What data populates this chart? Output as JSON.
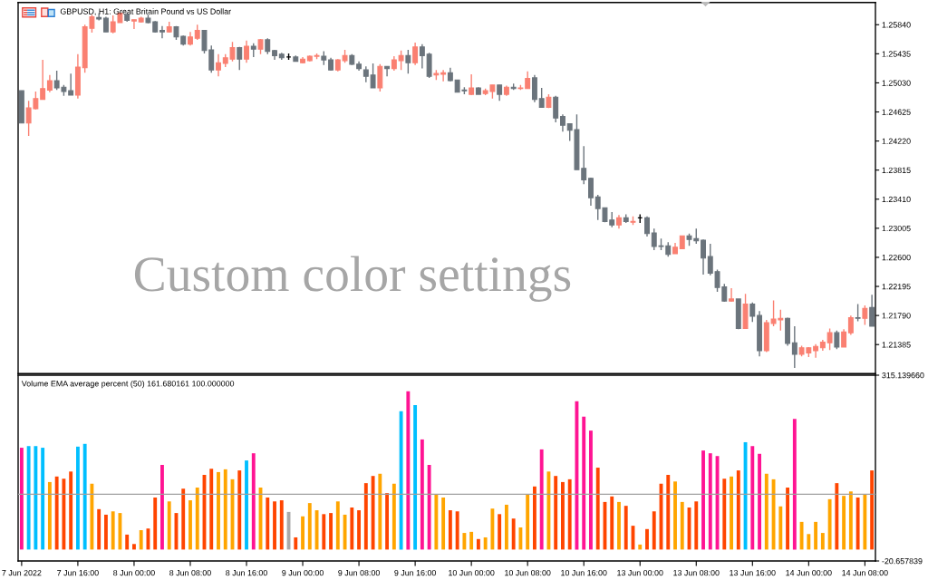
{
  "chart_data": [
    {
      "type": "candlestick",
      "title": "GBPUSD, H1: Great Britain Pound vs US Dollar",
      "annotations": [
        "Custom color settings"
      ],
      "categories": [
        null,
        null,
        null,
        null,
        null,
        null,
        null,
        null,
        null,
        null,
        null,
        null,
        null,
        null,
        null,
        null,
        null,
        null,
        null,
        null,
        null,
        null,
        null,
        null,
        null,
        null,
        null,
        null,
        null,
        null,
        null,
        null,
        null,
        null,
        null,
        null,
        null,
        null,
        null,
        null,
        null,
        null,
        null,
        null,
        null,
        null,
        null,
        null,
        null,
        null,
        null,
        null,
        null,
        null,
        null,
        null,
        null,
        null,
        null,
        null,
        null,
        null,
        null,
        null,
        null,
        null,
        null,
        null,
        null,
        null,
        null,
        null,
        null,
        null,
        null,
        null,
        null,
        null,
        null,
        null,
        null,
        null,
        null,
        null,
        null,
        null,
        null,
        null,
        null,
        null,
        null,
        null,
        null,
        null,
        null,
        null,
        null,
        null,
        null,
        null,
        null,
        null,
        null,
        null,
        null,
        null,
        null,
        null,
        null,
        null,
        null,
        null,
        null,
        null,
        null,
        null,
        null,
        null,
        null,
        null,
        null,
        null
      ],
      "ohlc": [
        [
          1.2492,
          1.2492,
          1.2447,
          1.2447
        ],
        [
          1.2447,
          1.2478,
          1.2429,
          1.2468
        ],
        [
          1.2467,
          1.2491,
          1.2466,
          1.2481
        ],
        [
          1.248,
          1.2535,
          1.248,
          1.2495
        ],
        [
          1.2493,
          1.2514,
          1.249,
          1.2506
        ],
        [
          1.2506,
          1.252,
          1.2493,
          1.2496
        ],
        [
          1.2497,
          1.25,
          1.2485,
          1.2491
        ],
        [
          1.2492,
          1.2516,
          1.2486,
          1.2486
        ],
        [
          1.2486,
          1.2543,
          1.2481,
          1.2525
        ],
        [
          1.2524,
          1.2584,
          1.2517,
          1.2581
        ],
        [
          1.2579,
          1.2598,
          1.2573,
          1.2595
        ],
        [
          1.2594,
          1.26,
          1.259,
          1.2592
        ],
        [
          1.2593,
          1.2595,
          1.2574,
          1.2574
        ],
        [
          1.2574,
          1.2597,
          1.2572,
          1.2588
        ],
        [
          1.2587,
          1.2601,
          1.2587,
          1.26
        ],
        [
          1.2598,
          1.26,
          1.2588,
          1.259
        ],
        [
          1.2589,
          1.2591,
          1.2578,
          1.2591
        ],
        [
          1.2588,
          1.2595,
          1.2587,
          1.2593
        ],
        [
          1.2593,
          1.2598,
          1.2586,
          1.2587
        ],
        [
          1.2588,
          1.2589,
          1.2573,
          1.2574
        ],
        [
          1.2576,
          1.2582,
          1.2565,
          1.2574
        ],
        [
          1.2574,
          1.2588,
          1.2573,
          1.2581
        ],
        [
          1.2581,
          1.2582,
          1.2563,
          1.2567
        ],
        [
          1.2568,
          1.2569,
          1.2555,
          1.2557
        ],
        [
          1.2557,
          1.2574,
          1.2555,
          1.2567
        ],
        [
          1.2565,
          1.2584,
          1.2563,
          1.2576
        ],
        [
          1.2576,
          1.2576,
          1.2544,
          1.2548
        ],
        [
          1.2549,
          1.2555,
          1.2517,
          1.2521
        ],
        [
          1.2521,
          1.2543,
          1.2512,
          1.2531
        ],
        [
          1.253,
          1.2543,
          1.2525,
          1.2538
        ],
        [
          1.2536,
          1.256,
          1.2533,
          1.2552
        ],
        [
          1.2552,
          1.2553,
          1.2521,
          1.2536
        ],
        [
          1.2536,
          1.2562,
          1.2531,
          1.2554
        ],
        [
          1.2554,
          1.2558,
          1.2539,
          1.255
        ],
        [
          1.255,
          1.2564,
          1.2543,
          1.2563
        ],
        [
          1.2563,
          1.2565,
          1.2543,
          1.2547
        ],
        [
          1.2548,
          1.2549,
          1.2535,
          1.2541
        ],
        [
          1.2543,
          1.2545,
          1.2535,
          1.2538
        ],
        [
          1.2539,
          1.2544,
          1.2535,
          1.2539
        ],
        [
          1.2539,
          1.2541,
          1.2533,
          1.2533
        ],
        [
          1.2531,
          1.2539,
          1.253,
          1.2536
        ],
        [
          1.2534,
          1.2541,
          1.2533,
          1.254
        ],
        [
          1.254,
          1.2544,
          1.2536,
          1.2541
        ],
        [
          1.254,
          1.2547,
          1.2528,
          1.2535
        ],
        [
          1.2535,
          1.2538,
          1.252,
          1.2521
        ],
        [
          1.2521,
          1.2536,
          1.2519,
          1.2535
        ],
        [
          1.2534,
          1.2549,
          1.2531,
          1.2541
        ],
        [
          1.2541,
          1.2543,
          1.2528,
          1.2529
        ],
        [
          1.2529,
          1.2533,
          1.252,
          1.2523
        ],
        [
          1.2521,
          1.2526,
          1.2504,
          1.2512
        ],
        [
          1.2514,
          1.253,
          1.2496,
          1.2496
        ],
        [
          1.2496,
          1.2529,
          1.2491,
          1.2526
        ],
        [
          1.2526,
          1.2526,
          1.2512,
          1.2523
        ],
        [
          1.2523,
          1.254,
          1.252,
          1.2535
        ],
        [
          1.2534,
          1.2548,
          1.2521,
          1.2541
        ],
        [
          1.2541,
          1.2549,
          1.2516,
          1.2531
        ],
        [
          1.2531,
          1.2559,
          1.2528,
          1.2553
        ],
        [
          1.2553,
          1.2557,
          1.2523,
          1.2541
        ],
        [
          1.2543,
          1.2545,
          1.251,
          1.2512
        ],
        [
          1.2514,
          1.2521,
          1.2507,
          1.2516
        ],
        [
          1.2515,
          1.2521,
          1.2505,
          1.2517
        ],
        [
          1.2517,
          1.2524,
          1.2505,
          1.2506
        ],
        [
          1.2507,
          1.2507,
          1.249,
          1.249
        ],
        [
          1.2493,
          1.2497,
          1.2487,
          1.2492
        ],
        [
          1.2487,
          1.2515,
          1.2486,
          1.2496
        ],
        [
          1.2496,
          1.2497,
          1.2487,
          1.2487
        ],
        [
          1.2488,
          1.2495,
          1.2486,
          1.2492
        ],
        [
          1.2491,
          1.25,
          1.2481,
          1.25
        ],
        [
          1.25,
          1.25,
          1.2478,
          1.2487
        ],
        [
          1.2487,
          1.2499,
          1.2485,
          1.2497
        ],
        [
          1.2497,
          1.2502,
          1.2493,
          1.2495
        ],
        [
          1.2495,
          1.25,
          1.2493,
          1.2496
        ],
        [
          1.2495,
          1.2519,
          1.2495,
          1.2509
        ],
        [
          1.251,
          1.2514,
          1.2476,
          1.248
        ],
        [
          1.2481,
          1.2496,
          1.2469,
          1.2469
        ],
        [
          1.2469,
          1.2487,
          1.2468,
          1.2483
        ],
        [
          1.2483,
          1.2485,
          1.2448,
          1.2454
        ],
        [
          1.2456,
          1.2459,
          1.2435,
          1.2444
        ],
        [
          1.2446,
          1.2446,
          1.2422,
          1.2437
        ],
        [
          1.2438,
          1.2459,
          1.2382,
          1.2382
        ],
        [
          1.2384,
          1.2415,
          1.2362,
          1.2368
        ],
        [
          1.237,
          1.2371,
          1.2332,
          1.2343
        ],
        [
          1.2344,
          1.2347,
          1.2312,
          1.2328
        ],
        [
          1.2329,
          1.2329,
          1.2309,
          1.231
        ],
        [
          1.2312,
          1.2323,
          1.2302,
          1.2305
        ],
        [
          1.2305,
          1.2319,
          1.23,
          1.2315
        ],
        [
          1.2315,
          1.232,
          1.2308,
          1.231
        ],
        [
          1.2309,
          1.2317,
          1.2305,
          1.231
        ],
        [
          1.2315,
          1.232,
          1.2308,
          1.2315
        ],
        [
          1.2315,
          1.2317,
          1.2289,
          1.2293
        ],
        [
          1.2294,
          1.23,
          1.227,
          1.2275
        ],
        [
          1.2276,
          1.2286,
          1.227,
          1.2275
        ],
        [
          1.2276,
          1.2281,
          1.2261,
          1.2264
        ],
        [
          1.2265,
          1.228,
          1.2265,
          1.2274
        ],
        [
          1.2272,
          1.229,
          1.2272,
          1.229
        ],
        [
          1.229,
          1.2293,
          1.2276,
          1.2285
        ],
        [
          1.2286,
          1.23,
          1.2279,
          1.2283
        ],
        [
          1.2284,
          1.2285,
          1.2236,
          1.2259
        ],
        [
          1.2261,
          1.2279,
          1.2235,
          1.2238
        ],
        [
          1.224,
          1.2243,
          1.2212,
          1.2218
        ],
        [
          1.2219,
          1.2223,
          1.2198,
          1.2199
        ],
        [
          1.2199,
          1.2217,
          1.2198,
          1.2202
        ],
        [
          1.2202,
          1.2202,
          1.216,
          1.2161
        ],
        [
          1.2161,
          1.2209,
          1.2161,
          1.2195
        ],
        [
          1.2195,
          1.2197,
          1.217,
          1.2178
        ],
        [
          1.2179,
          1.2185,
          1.2122,
          1.213
        ],
        [
          1.213,
          1.2173,
          1.2128,
          1.2169
        ],
        [
          1.2168,
          1.22,
          1.2164,
          1.2174
        ],
        [
          1.2173,
          1.2187,
          1.2158,
          1.2175
        ],
        [
          1.2175,
          1.2176,
          1.2137,
          1.214
        ],
        [
          1.2141,
          1.2164,
          1.2106,
          1.2125
        ],
        [
          1.2125,
          1.2137,
          1.2122,
          1.2134
        ],
        [
          1.2127,
          1.2135,
          1.2121,
          1.2134
        ],
        [
          1.213,
          1.2139,
          1.212,
          1.2136
        ],
        [
          1.2134,
          1.2145,
          1.213,
          1.2142
        ],
        [
          1.2141,
          1.2161,
          1.2131,
          1.2155
        ],
        [
          1.2155,
          1.2158,
          1.2132,
          1.2135
        ],
        [
          1.2135,
          1.216,
          1.2135,
          1.2156
        ],
        [
          1.2155,
          1.2179,
          1.2152,
          1.2176
        ],
        [
          1.2176,
          1.2195,
          1.2171,
          1.2175
        ],
        [
          1.2175,
          1.2193,
          1.2166,
          1.2189
        ],
        [
          1.219,
          1.2208,
          1.2164,
          1.2164
        ]
      ],
      "colors": [
        "#6b747c",
        "#fa8072",
        "#fa8072",
        "#fa8072",
        "#fa8072",
        "#6b747c",
        "#6b747c",
        "#6b747c",
        "#fa8072",
        "#fa8072",
        "#fa8072",
        "#6b747c",
        "#6b747c",
        "#fa8072",
        "#fa8072",
        "#6b747c",
        "#fa8072",
        "#fa8072",
        "#6b747c",
        "#6b747c",
        "#6b747c",
        "#fa8072",
        "#6b747c",
        "#6b747c",
        "#fa8072",
        "#fa8072",
        "#6b747c",
        "#6b747c",
        "#fa8072",
        "#fa8072",
        "#fa8072",
        "#6b747c",
        "#fa8072",
        "#6b747c",
        "#fa8072",
        "#6b747c",
        "#6b747c",
        "#6b747c",
        "#000000",
        "#6b747c",
        "#fa8072",
        "#fa8072",
        "#fa8072",
        "#6b747c",
        "#6b747c",
        "#fa8072",
        "#fa8072",
        "#6b747c",
        "#6b747c",
        "#6b747c",
        "#6b747c",
        "#fa8072",
        "#6b747c",
        "#fa8072",
        "#fa8072",
        "#6b747c",
        "#fa8072",
        "#6b747c",
        "#6b747c",
        "#fa8072",
        "#fa8072",
        "#6b747c",
        "#6b747c",
        "#6b747c",
        "#fa8072",
        "#6b747c",
        "#fa8072",
        "#fa8072",
        "#6b747c",
        "#fa8072",
        "#6b747c",
        "#fa8072",
        "#fa8072",
        "#6b747c",
        "#6b747c",
        "#fa8072",
        "#6b747c",
        "#6b747c",
        "#6b747c",
        "#6b747c",
        "#6b747c",
        "#6b747c",
        "#6b747c",
        "#6b747c",
        "#6b747c",
        "#fa8072",
        "#6b747c",
        "#fa8072",
        "#000000",
        "#6b747c",
        "#6b747c",
        "#6b747c",
        "#6b747c",
        "#fa8072",
        "#fa8072",
        "#6b747c",
        "#6b747c",
        "#6b747c",
        "#6b747c",
        "#6b747c",
        "#6b747c",
        "#fa8072",
        "#6b747c",
        "#fa8072",
        "#6b747c",
        "#6b747c",
        "#fa8072",
        "#fa8072",
        "#fa8072",
        "#6b747c",
        "#6b747c",
        "#fa8072",
        "#fa8072",
        "#fa8072",
        "#fa8072",
        "#fa8072",
        "#6b747c",
        "#fa8072",
        "#fa8072",
        "#6b747c",
        "#fa8072",
        "#6b747c"
      ],
      "ylim": [
        1.2098,
        1.2615
      ],
      "yticks": [
        {
          "value": 1.2584,
          "label": "1.25840"
        },
        {
          "value": 1.25435,
          "label": "1.25435"
        },
        {
          "value": 1.2503,
          "label": "1.25030"
        },
        {
          "value": 1.24625,
          "label": "1.24625"
        },
        {
          "value": 1.2422,
          "label": "1.24220"
        },
        {
          "value": 1.23815,
          "label": "1.23815"
        },
        {
          "value": 1.2341,
          "label": "1.23410"
        },
        {
          "value": 1.23005,
          "label": "1.23005"
        },
        {
          "value": 1.226,
          "label": "1.22600"
        },
        {
          "value": 1.22195,
          "label": "1.22195"
        },
        {
          "value": 1.2179,
          "label": "1.21790"
        },
        {
          "value": 1.21385,
          "label": "1.21385"
        }
      ]
    },
    {
      "type": "bar",
      "title": "Volume EMA average percent (50) 161.680161 100.000000",
      "categories": [
        "7 Jun 2022",
        null,
        null,
        null,
        null,
        null,
        null,
        null,
        "7 Jun 16:00",
        null,
        null,
        null,
        null,
        null,
        null,
        null,
        "8 Jun 00:00",
        null,
        null,
        null,
        null,
        null,
        null,
        null,
        "8 Jun 08:00",
        null,
        null,
        null,
        null,
        null,
        null,
        null,
        "8 Jun 16:00",
        null,
        null,
        null,
        null,
        null,
        null,
        null,
        "9 Jun 00:00",
        null,
        null,
        null,
        null,
        null,
        null,
        null,
        "9 Jun 08:00",
        null,
        null,
        null,
        null,
        null,
        null,
        null,
        "9 Jun 16:00",
        null,
        null,
        null,
        null,
        null,
        null,
        null,
        "10 Jun 00:00",
        null,
        null,
        null,
        null,
        null,
        null,
        null,
        "10 Jun 08:00",
        null,
        null,
        null,
        null,
        null,
        null,
        null,
        "10 Jun 16:00",
        null,
        null,
        null,
        null,
        null,
        null,
        null,
        "13 Jun 00:00",
        null,
        null,
        null,
        null,
        null,
        null,
        null,
        "13 Jun 08:00",
        null,
        null,
        null,
        null,
        null,
        null,
        null,
        "13 Jun 16:00",
        null,
        null,
        null,
        null,
        null,
        null,
        null,
        "14 Jun 00:00",
        null,
        null,
        null,
        null,
        null,
        null,
        null,
        "14 Jun 08:00",
        null
      ],
      "values": [
        184,
        187,
        187,
        184,
        122,
        132,
        128,
        141,
        186,
        191,
        119,
        73,
        63,
        69,
        66,
        27,
        10,
        35,
        38,
        94,
        153,
        87,
        66,
        110,
        89,
        112,
        135,
        146,
        140,
        145,
        127,
        143,
        161,
        174,
        112,
        94,
        87,
        89,
        68,
        22,
        60,
        84,
        71,
        64,
        66,
        87,
        63,
        76,
        71,
        120,
        133,
        137,
        102,
        119,
        250,
        286,
        261,
        199,
        153,
        100,
        94,
        71,
        69,
        30,
        32,
        19,
        22,
        74,
        64,
        81,
        56,
        40,
        100,
        114,
        181,
        141,
        133,
        122,
        127,
        268,
        240,
        215,
        148,
        86,
        96,
        86,
        79,
        43,
        9,
        37,
        69,
        119,
        135,
        123,
        86,
        76,
        87,
        179,
        174,
        169,
        128,
        132,
        143,
        194,
        187,
        173,
        137,
        127,
        78,
        112,
        236,
        50,
        28,
        50,
        30,
        91,
        120,
        97,
        105,
        94,
        100,
        143
      ],
      "colors": [
        "#ff1493",
        "#00bfff",
        "#00bfff",
        "#00bfff",
        "#ffa500",
        "#ff4500",
        "#ff4500",
        "#ff4500",
        "#00bfff",
        "#00bfff",
        "#ffa500",
        "#ff4500",
        "#ff4500",
        "#ffa500",
        "#ffa500",
        "#ff4500",
        "#ff4500",
        "#ffa500",
        "#ff4500",
        "#ff4500",
        "#ff1493",
        "#ffa500",
        "#ff4500",
        "#ff4500",
        "#ffa500",
        "#ffa500",
        "#ff4500",
        "#ff4500",
        "#ffa500",
        "#ffa500",
        "#ffa500",
        "#ff4500",
        "#00bfff",
        "#ff1493",
        "#ffa500",
        "#ff4500",
        "#ff4500",
        "#ff4500",
        "#a9a9a9",
        "#ff4500",
        "#ffa500",
        "#ffa500",
        "#ffa500",
        "#ff4500",
        "#ff4500",
        "#ffa500",
        "#ffa500",
        "#ff4500",
        "#ff4500",
        "#ff4500",
        "#ff4500",
        "#ffa500",
        "#ff4500",
        "#ffa500",
        "#00bfff",
        "#ff1493",
        "#00bfff",
        "#ff1493",
        "#ff1493",
        "#ffa500",
        "#ffa500",
        "#ff4500",
        "#ff4500",
        "#ffa500",
        "#ffa500",
        "#ff4500",
        "#ffa500",
        "#ffa500",
        "#ff4500",
        "#ffa500",
        "#ff4500",
        "#ffa500",
        "#ffa500",
        "#ff4500",
        "#ff1493",
        "#ffa500",
        "#ff4500",
        "#ff4500",
        "#ff4500",
        "#ff1493",
        "#ff1493",
        "#ff1493",
        "#ff4500",
        "#ff4500",
        "#ff4500",
        "#ffa500",
        "#ff4500",
        "#ff4500",
        "#ffa500",
        "#ff4500",
        "#ff4500",
        "#ff4500",
        "#ff4500",
        "#ffa500",
        "#ffa500",
        "#ff4500",
        "#ff4500",
        "#ff1493",
        "#ff1493",
        "#ff1493",
        "#ff4500",
        "#ffa500",
        "#ff4500",
        "#00bfff",
        "#ff1493",
        "#ff1493",
        "#ffa500",
        "#ffa500",
        "#ffa500",
        "#ff4500",
        "#ff1493",
        "#ffa500",
        "#ffa500",
        "#ffa500",
        "#ffa500",
        "#ffa500",
        "#ff4500",
        "#ffa500",
        "#ffa500",
        "#ff4500",
        "#ffa500",
        "#ff4500"
      ],
      "ylim": [
        -20.657839,
        315.13966
      ],
      "yticks": [
        {
          "value": 315.13966,
          "label": "315.139660"
        },
        {
          "value": -20.657839,
          "label": "-20.657839"
        }
      ],
      "ref_lines": [
        {
          "axis": "y",
          "value": 100,
          "color": "#a0a0a0"
        }
      ]
    }
  ]
}
